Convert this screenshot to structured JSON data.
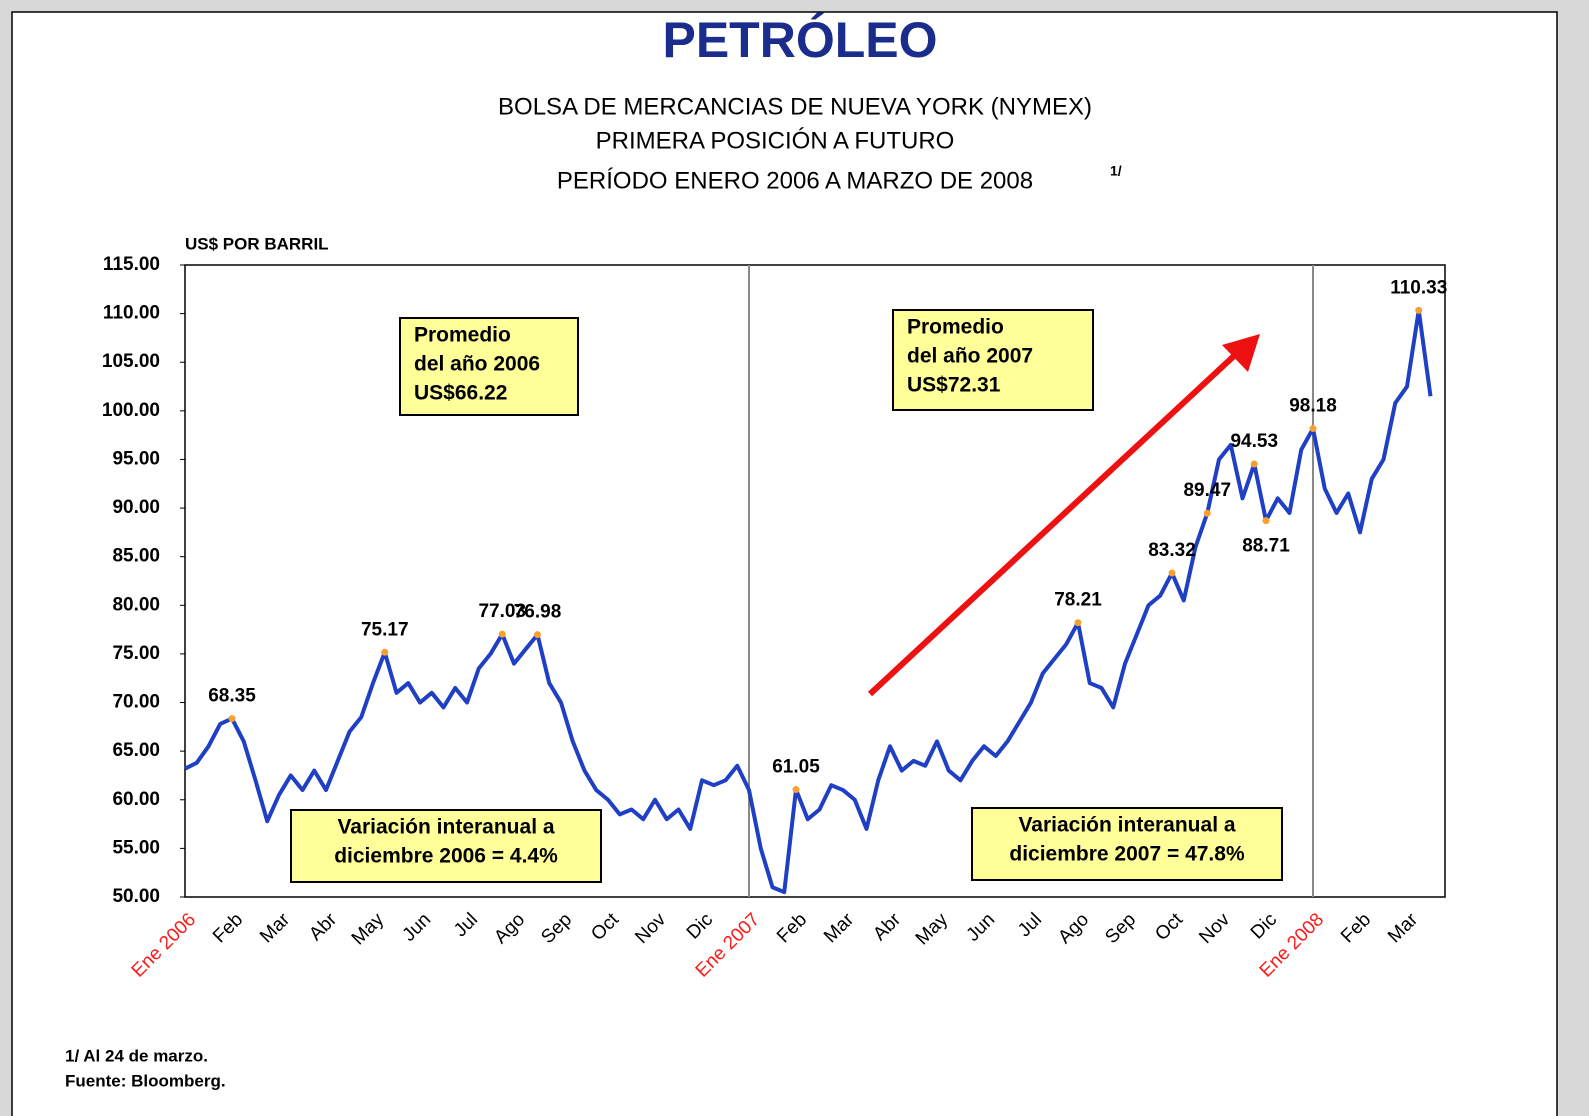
{
  "chart_data": {
    "type": "line",
    "title": "PETRÓLEO",
    "subtitle": [
      "BOLSA DE MERCANCIAS DE NUEVA YORK (NYMEX)",
      "PRIMERA POSICIÓN A FUTURO",
      "PERÍODO ENERO 2006 A MARZO DE 2008"
    ],
    "subtitle_note": "1/",
    "y_label": "US$ POR BARRIL",
    "footnotes": [
      "1/ Al 24 de marzo.",
      "Fuente: Bloomberg."
    ],
    "categories": [
      "Ene 2006",
      null,
      null,
      null,
      "Feb",
      null,
      null,
      null,
      "Mar",
      null,
      null,
      null,
      "Abr",
      null,
      null,
      null,
      "May",
      null,
      null,
      null,
      "Jun",
      null,
      null,
      null,
      "Jul",
      null,
      null,
      null,
      "Ago",
      null,
      null,
      null,
      "Sep",
      null,
      null,
      null,
      "Oct",
      null,
      null,
      null,
      "Nov",
      null,
      null,
      null,
      "Dic",
      null,
      null,
      null,
      "Ene 2007",
      null,
      null,
      null,
      "Feb",
      null,
      null,
      null,
      "Mar",
      null,
      null,
      null,
      "Abr",
      null,
      null,
      null,
      "May",
      null,
      null,
      null,
      "Jun",
      null,
      null,
      null,
      "Jul",
      null,
      null,
      null,
      "Ago",
      null,
      null,
      null,
      "Sep",
      null,
      null,
      null,
      "Oct",
      null,
      null,
      null,
      "Nov",
      null,
      null,
      null,
      "Dic",
      null,
      null,
      null,
      "Ene 2008",
      null,
      null,
      null,
      "Feb",
      null,
      null,
      null,
      "Mar",
      null,
      null
    ],
    "series": [
      {
        "name": "Petróleo",
        "color": "#1f3fc4",
        "values": [
          63.2,
          63.8,
          65.5,
          67.8,
          68.35,
          66,
          62,
          57.8,
          60.5,
          62.5,
          61,
          63,
          61,
          64,
          67,
          68.5,
          72,
          75.17,
          71,
          72,
          70,
          71,
          69.5,
          71.5,
          70,
          73.5,
          75,
          77.03,
          74,
          75.5,
          76.98,
          72,
          70,
          66,
          63,
          61,
          60,
          58.5,
          59,
          58,
          60,
          58,
          59,
          57,
          62,
          61.5,
          62,
          63.5,
          61,
          55,
          51,
          50.5,
          61.05,
          58,
          59,
          61.5,
          61,
          60,
          57,
          62,
          65.5,
          63,
          64,
          63.5,
          66,
          63,
          62,
          64,
          65.5,
          64.5,
          66,
          68,
          70,
          73,
          74.5,
          76,
          78.21,
          72,
          71.5,
          69.5,
          74,
          77,
          80,
          81,
          83.32,
          80.5,
          86,
          89.47,
          95,
          96.5,
          91,
          94.53,
          88.71,
          91,
          89.5,
          96,
          98.18,
          92,
          89.5,
          91.5,
          87.5,
          93,
          95,
          100.8,
          102.5,
          110.33,
          101.5
        ],
        "value_labels": [
          null,
          null,
          null,
          null,
          "68.35",
          null,
          null,
          null,
          null,
          null,
          null,
          null,
          null,
          null,
          null,
          null,
          null,
          "75.17",
          null,
          null,
          null,
          null,
          null,
          null,
          null,
          null,
          null,
          "77.03",
          null,
          null,
          "76.98",
          null,
          null,
          null,
          null,
          null,
          null,
          null,
          null,
          null,
          null,
          null,
          null,
          null,
          null,
          null,
          null,
          null,
          null,
          null,
          null,
          null,
          "61.05",
          null,
          null,
          null,
          null,
          null,
          null,
          null,
          null,
          null,
          null,
          null,
          null,
          null,
          null,
          null,
          null,
          null,
          null,
          null,
          null,
          null,
          null,
          null,
          "78.21",
          null,
          null,
          null,
          null,
          null,
          null,
          null,
          "83.32",
          null,
          null,
          "89.47",
          null,
          null,
          null,
          "94.53",
          "88.71",
          null,
          null,
          null,
          "98.18",
          null,
          null,
          null,
          null,
          null,
          null,
          null,
          null,
          "110.33",
          null
        ]
      }
    ],
    "ylim": [
      50,
      115
    ],
    "yticks": [
      {
        "value": 50,
        "label": "50.00"
      },
      {
        "value": 55,
        "label": "55.00"
      },
      {
        "value": 60,
        "label": "60.00"
      },
      {
        "value": 65,
        "label": "65.00"
      },
      {
        "value": 70,
        "label": "70.00"
      },
      {
        "value": 75,
        "label": "75.00"
      },
      {
        "value": 80,
        "label": "80.00"
      },
      {
        "value": 85,
        "label": "85.00"
      },
      {
        "value": 90,
        "label": "90.00"
      },
      {
        "value": 95,
        "label": "95.00"
      },
      {
        "value": 100,
        "label": "100.00"
      },
      {
        "value": 105,
        "label": "105.00"
      },
      {
        "value": 110,
        "label": "110.00"
      },
      {
        "value": 115,
        "label": "115.00"
      }
    ],
    "year_label_color": "#ff1a1a",
    "annotations": [
      [
        "Promedio",
        "del año 2006",
        "US$66.22"
      ],
      [
        "Promedio",
        "del año 2007",
        "US$72.31"
      ],
      [
        "Variación interanual a",
        "diciembre 2006 = 4.4%"
      ],
      [
        "Variación interanual a",
        "diciembre 2007 = 47.8%"
      ]
    ]
  }
}
